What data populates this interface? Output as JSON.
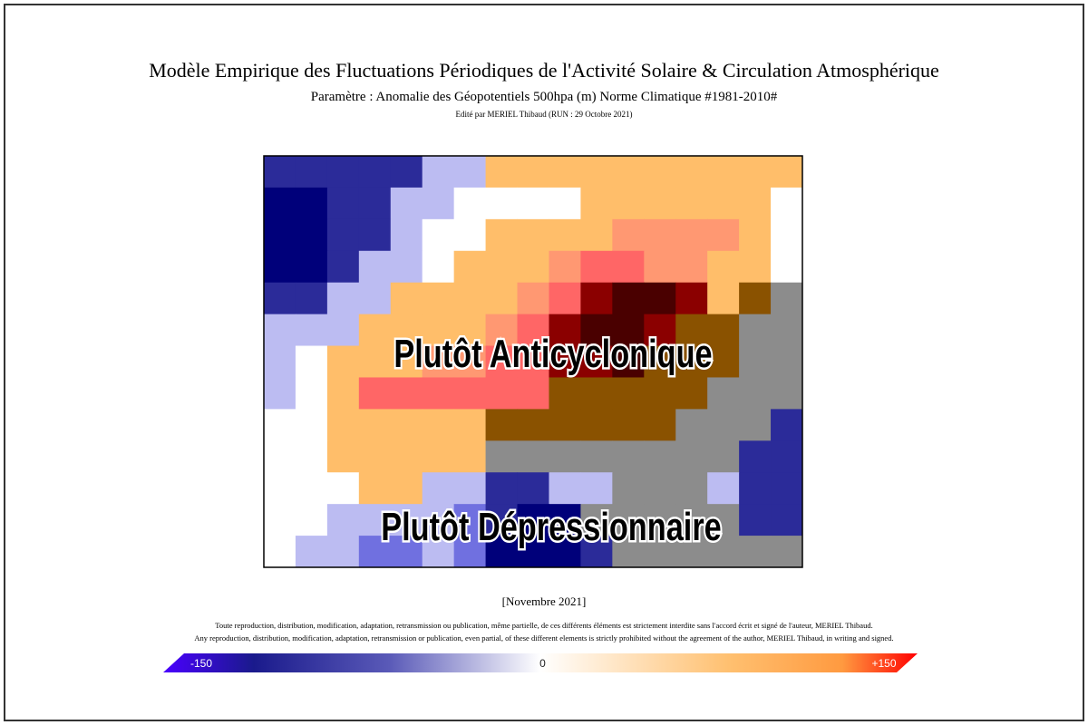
{
  "header": {
    "title": "Modèle Empirique des Fluctuations Périodiques de l'Activité Solaire & Circulation Atmosphérique",
    "subtitle": "Paramètre : Anomalie des Géopotentiels 500hpa (m) Norme Climatique #1981-2010#",
    "editor": "Edité par MERIEL Thibaud (RUN : 29 Octobre 2021)"
  },
  "map": {
    "labels": [
      "Plutôt Anticyclonique",
      "Plutôt Dépressionnaire"
    ]
  },
  "period": "[Novembre 2021]",
  "notices": [
    "Toute reproduction, distribution, modification, adaptation, retransmission ou publication, même partielle, de ces différents éléments est strictement interdite sans l'accord écrit et signé de l'auteur, MERIEL Thibaud.",
    "Any reproduction, distribution, modification, adaptation, retransmission or publication, even partial, of these different elements is strictly prohibited without the agreement of the author, MERIEL Thibaud, in writing and signed."
  ],
  "colorbar": {
    "ticks": [
      -150,
      0,
      {
        "value": 150,
        "label": "+150"
      }
    ]
  }
}
